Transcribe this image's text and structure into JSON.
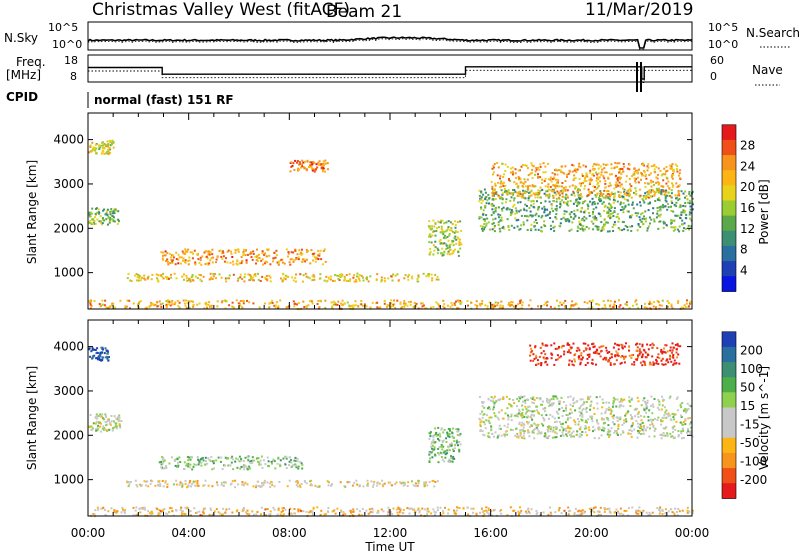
{
  "header": {
    "station": "Christmas Valley West (fitACF)",
    "beam": "Beam 21",
    "date": "11/Mar/2019"
  },
  "top_panels": {
    "nsky_label": "N.Sky",
    "nsky_ticks": [
      "10^5",
      "10^0"
    ],
    "nsearch_label": "N.Search",
    "nsearch_ticks": [
      "10^5",
      "10^0"
    ],
    "freq_label_1": "Freq.",
    "freq_label_2": "[MHz]",
    "freq_ticks": [
      "18",
      "8"
    ],
    "nave_label": "Nave",
    "nave_ticks": [
      "60",
      "0"
    ],
    "cpid_label": "CPID",
    "cpid_text": "normal (fast) 151 RF",
    "freq_series_mhz": [
      [
        0,
        13.5
      ],
      [
        2.95,
        13.5
      ],
      [
        2.95,
        10.3
      ],
      [
        15.0,
        10.3
      ],
      [
        15.0,
        13.8
      ],
      [
        22.0,
        13.8
      ],
      [
        22.0,
        8
      ],
      [
        22.1,
        8
      ],
      [
        22.1,
        13.8
      ],
      [
        24,
        13.8
      ]
    ]
  },
  "chart_data": [
    {
      "type": "heatmap",
      "panel": "power",
      "ylabel": "Slant Range [km]",
      "xlabel": "Time UT",
      "x_range_hours": [
        0,
        24
      ],
      "ylim": [
        180,
        4600
      ],
      "x_ticks": [
        "00:00",
        "04:00",
        "08:00",
        "12:00",
        "16:00",
        "20:00",
        "00:00"
      ],
      "y_ticks": [
        1000,
        2000,
        3000,
        4000
      ],
      "colorbar": {
        "label": "Power [dB]",
        "ticks": [
          "28",
          "24",
          "20",
          "16",
          "12",
          "8",
          "4"
        ],
        "colors": [
          "#e41a1c",
          "#f05018",
          "#f7941d",
          "#fdb515",
          "#e8d21a",
          "#9acd32",
          "#5aa84a",
          "#3d8f73",
          "#2a6f9e",
          "#1f3fb4",
          "#0a14e0"
        ]
      },
      "regions": [
        {
          "t0": 0.0,
          "t1": 1.2,
          "r0": 2100,
          "r1": 2500,
          "level": 0.55
        },
        {
          "t0": 0.0,
          "t1": 1.0,
          "r0": 3700,
          "r1": 4000,
          "level": 0.4
        },
        {
          "t0": 1.5,
          "t1": 14.0,
          "r0": 820,
          "r1": 1000,
          "level": 0.35
        },
        {
          "t0": 2.8,
          "t1": 9.5,
          "r0": 1200,
          "r1": 1550,
          "level": 0.25
        },
        {
          "t0": 8.0,
          "t1": 9.5,
          "r0": 3300,
          "r1": 3550,
          "level": 0.2
        },
        {
          "t0": 13.5,
          "t1": 14.8,
          "r0": 1400,
          "r1": 2200,
          "level": 0.5
        },
        {
          "t0": 15.5,
          "t1": 24.0,
          "r0": 1950,
          "r1": 2900,
          "level": 0.6
        },
        {
          "t0": 16.0,
          "t1": 23.5,
          "r0": 2700,
          "r1": 3500,
          "level": 0.3
        },
        {
          "t0": 0.0,
          "t1": 24.0,
          "r0": 200,
          "r1": 400,
          "level": 0.3
        }
      ]
    },
    {
      "type": "heatmap",
      "panel": "velocity",
      "ylabel": "Slant Range [km]",
      "xlabel": "Time UT",
      "x_range_hours": [
        0,
        24
      ],
      "ylim": [
        180,
        4600
      ],
      "x_ticks": [
        "00:00",
        "04:00",
        "08:00",
        "12:00",
        "16:00",
        "20:00",
        "00:00"
      ],
      "y_ticks": [
        1000,
        2000,
        3000,
        4000
      ],
      "colorbar": {
        "label": "Velocity [m s^-1]",
        "ticks": [
          "200",
          "100",
          "50",
          "15",
          "-15",
          "-50",
          "-100",
          "-200"
        ],
        "colors": [
          "#1f3fb4",
          "#2a6f9e",
          "#3d8f73",
          "#4daf4a",
          "#8fd14f",
          "#c8c8c8",
          "#c8c8c8",
          "#fdb515",
          "#f7941d",
          "#f05018",
          "#e41a1c"
        ]
      },
      "regions": [
        {
          "t0": 0.0,
          "t1": 1.3,
          "r0": 2100,
          "r1": 2500,
          "level": 0.5
        },
        {
          "t0": 0.0,
          "t1": 0.8,
          "r0": 3700,
          "r1": 4000,
          "level": 0.05
        },
        {
          "t0": 1.5,
          "t1": 14.0,
          "r0": 850,
          "r1": 1000,
          "level": 0.6
        },
        {
          "t0": 2.8,
          "t1": 8.5,
          "r0": 1250,
          "r1": 1550,
          "level": 0.4
        },
        {
          "t0": 13.5,
          "t1": 14.8,
          "r0": 1400,
          "r1": 2200,
          "level": 0.4
        },
        {
          "t0": 15.5,
          "t1": 24.0,
          "r0": 1950,
          "r1": 2900,
          "level": 0.5
        },
        {
          "t0": 17.5,
          "t1": 23.5,
          "r0": 3600,
          "r1": 4100,
          "level": 0.95
        },
        {
          "t0": 0.0,
          "t1": 24.0,
          "r0": 200,
          "r1": 400,
          "level": 0.65
        }
      ]
    }
  ]
}
